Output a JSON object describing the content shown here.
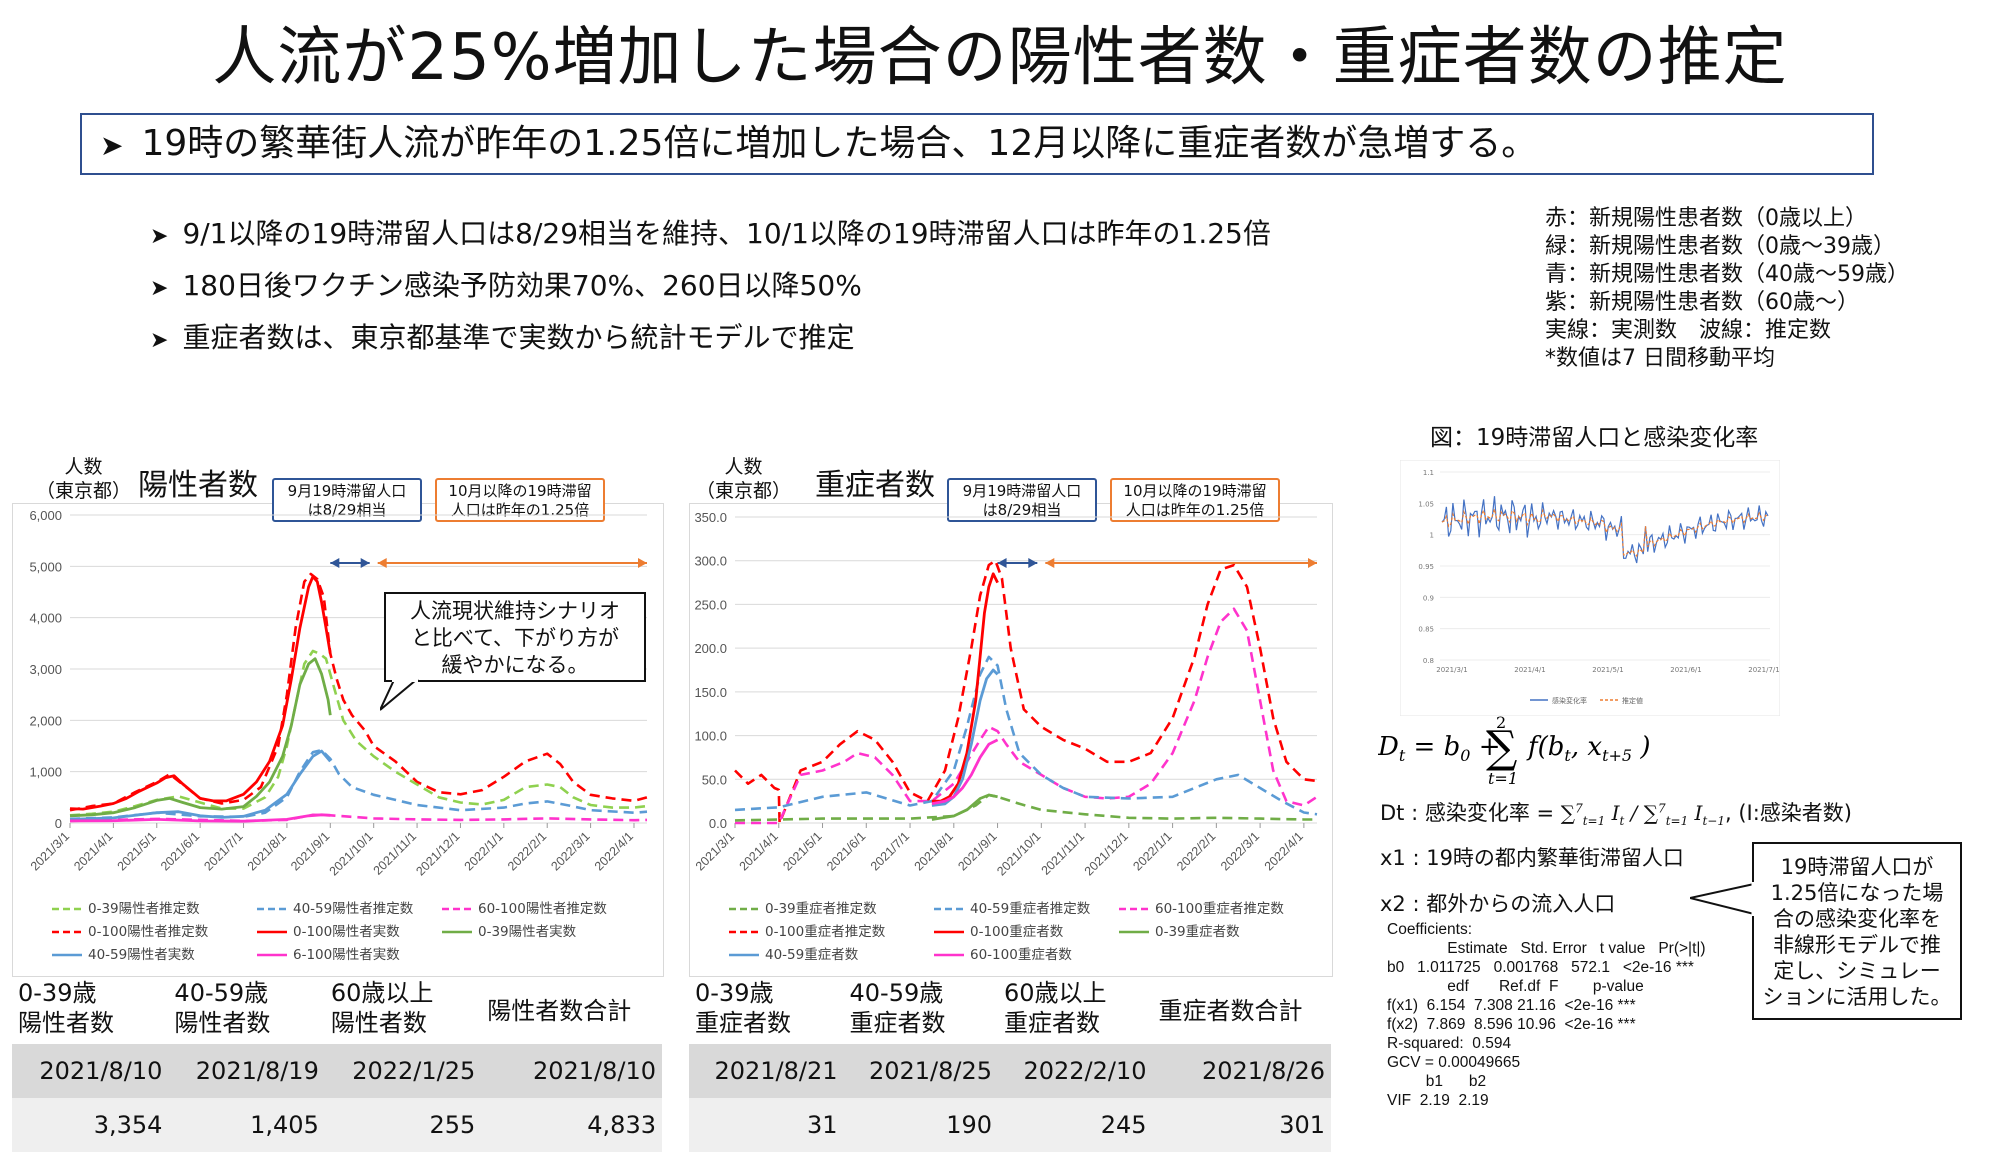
{
  "title": "人流が25%増加した場合の陽性者数・重症者数の推定",
  "summary": "19時の繁華街人流が昨年の1.25倍に増加した場合、12月以降に重症者数が急増する。",
  "bullets": [
    "9/1以降の19時滞留人口は8/29相当を維持、10/1以降の19時滞留人口は昨年の1.25倍",
    "180日後ワクチン感染予防効果70%、260日以降50%",
    "重症者数は、東京都基準で実数から統計モデルで推定"
  ],
  "legend_note": [
    "赤：新規陽性患者数（0歳以上）",
    "緑：新規陽性患者数（0歳〜39歳）",
    "青：新規陽性患者数（40歳〜59歳）",
    "紫：新規陽性患者数（60歳〜）",
    "実線：実測数　波線：推定数",
    "*数値は7 日間移動平均"
  ],
  "colors": {
    "red": "#ff0000",
    "green": "#8fd14f",
    "green_dark": "#70ad47",
    "blue": "#5b9bd5",
    "magenta": "#ff33cc",
    "callout_blue": "#2f5597",
    "callout_orange": "#ed7d31"
  },
  "left_chart": {
    "ylabel": "人数\n（東京都）",
    "title": "陽性者数",
    "callout1": "9月19時滞留人口\nは8/29相当",
    "callout2": "10月以降の19時滞留\n人口は昨年の1.25倍",
    "note": "人流現状維持シナリオ\nと比べて、下がり方が\n緩やかになる。",
    "legend": [
      "0-39陽性者推定数",
      "40-59陽性者推定数",
      "60-100陽性者推定数",
      "0-100陽性者推定数",
      "0-100陽性者実数",
      "0-39陽性者実数",
      "40-59陽性者実数",
      "6-100陽性者実数"
    ]
  },
  "right_chart": {
    "ylabel": "人数\n（東京都）",
    "title": "重症者数",
    "callout1": "9月19時滞留人口\nは8/29相当",
    "callout2": "10月以降の19時滞留\n人口は昨年の1.25倍",
    "legend": [
      "0-39重症者推定数",
      "40-59重症者推定数",
      "60-100重症者推定数",
      "0-100重症者推定数",
      "0-100重症者数",
      "0-39重症者数",
      "40-59重症者数",
      "60-100重症者数"
    ]
  },
  "chart_data": [
    {
      "type": "line",
      "title": "陽性者数",
      "ylabel": "人数（東京都）",
      "ylim": [
        0,
        6000
      ],
      "yticks": [
        "0",
        "1,000",
        "2,000",
        "3,000",
        "4,000",
        "5,000",
        "6,000"
      ],
      "xticks": [
        "2021/3/1",
        "2021/4/1",
        "2021/5/1",
        "2021/6/1",
        "2021/7/1",
        "2021/8/1",
        "2021/9/1",
        "2021/10/1",
        "2021/11/1",
        "2021/12/1",
        "2022/1/1",
        "2022/2/1",
        "2022/3/1",
        "2022/4/1"
      ],
      "x_months": [
        0,
        1,
        2,
        3,
        4,
        5,
        6,
        7,
        8,
        9,
        10,
        11,
        12,
        13
      ],
      "legend_position": "bottom",
      "series": [
        {
          "name": "0-100陽性者推定数",
          "color": "#ff0000",
          "dash": true,
          "x": [
            0,
            0.5,
            1,
            1.5,
            2,
            2.3,
            2.6,
            3,
            3.5,
            4,
            4.4,
            4.8,
            5,
            5.2,
            5.4,
            5.55,
            5.7,
            5.85,
            6,
            6.15,
            6.3,
            6.5,
            6.8,
            7,
            7.5,
            8,
            8.5,
            9,
            9.5,
            10,
            10.5,
            11,
            11.3,
            11.6,
            12,
            12.5,
            13,
            13.3
          ],
          "y": [
            250,
            330,
            380,
            600,
            800,
            950,
            750,
            480,
            380,
            450,
            700,
            1500,
            2500,
            3800,
            4700,
            4850,
            4750,
            4400,
            3300,
            2800,
            2400,
            2100,
            1800,
            1500,
            1200,
            800,
            600,
            560,
            640,
            900,
            1200,
            1350,
            1150,
            800,
            550,
            480,
            430,
            500
          ]
        },
        {
          "name": "0-39陽性者推定数",
          "color": "#8fd14f",
          "dash": true,
          "x": [
            0,
            0.5,
            1,
            1.5,
            2,
            2.5,
            3,
            3.5,
            4,
            4.5,
            4.8,
            5,
            5.2,
            5.4,
            5.6,
            5.75,
            5.9,
            6.1,
            6.3,
            6.6,
            7,
            7.5,
            8,
            8.5,
            9,
            9.5,
            10,
            10.5,
            11,
            11.3,
            11.6,
            12,
            12.5,
            13,
            13.3
          ],
          "y": [
            150,
            180,
            220,
            330,
            450,
            520,
            400,
            280,
            280,
            500,
            900,
            1500,
            2300,
            3100,
            3350,
            3300,
            3200,
            2600,
            2000,
            1600,
            1300,
            1000,
            750,
            500,
            400,
            360,
            450,
            700,
            750,
            700,
            500,
            350,
            300,
            300,
            330
          ]
        },
        {
          "name": "40-59陽性者推定数",
          "color": "#5b9bd5",
          "dash": true,
          "x": [
            0,
            1,
            2,
            3,
            4,
            4.5,
            5,
            5.3,
            5.6,
            5.8,
            6,
            6.2,
            6.5,
            7,
            7.5,
            8,
            9,
            10,
            10.5,
            11,
            11.5,
            12,
            13,
            13.3
          ],
          "y": [
            80,
            110,
            200,
            130,
            120,
            200,
            500,
            1000,
            1380,
            1420,
            1250,
            950,
            700,
            550,
            450,
            350,
            250,
            300,
            380,
            420,
            340,
            250,
            200,
            220
          ]
        },
        {
          "name": "60-100陽性者推定数",
          "color": "#ff33cc",
          "dash": true,
          "x": [
            0,
            2,
            4,
            5,
            5.6,
            6,
            7,
            8,
            9,
            10,
            11,
            12,
            13,
            13.3
          ],
          "y": [
            40,
            80,
            40,
            60,
            160,
            150,
            90,
            70,
            60,
            70,
            90,
            70,
            55,
            60
          ]
        },
        {
          "name": "0-100陽性者実数",
          "color": "#ff0000",
          "dash": false,
          "x": [
            0,
            0.3,
            0.7,
            1,
            1.3,
            1.6,
            2,
            2.2,
            2.4,
            2.6,
            2.8,
            3,
            3.3,
            3.6,
            4,
            4.3,
            4.6,
            4.9,
            5.1,
            5.3,
            5.5,
            5.6,
            5.7,
            5.8,
            5.9,
            6.0
          ],
          "y": [
            280,
            270,
            330,
            380,
            480,
            620,
            780,
            880,
            920,
            760,
            620,
            480,
            430,
            430,
            560,
            800,
            1200,
            1900,
            2800,
            3800,
            4600,
            4800,
            4700,
            4300,
            3800,
            3300
          ]
        },
        {
          "name": "0-39陽性者実数",
          "color": "#70ad47",
          "dash": false,
          "x": [
            0,
            0.5,
            1,
            1.5,
            2,
            2.3,
            2.6,
            3,
            3.5,
            4,
            4.3,
            4.6,
            4.9,
            5.1,
            5.3,
            5.5,
            5.65,
            5.8,
            5.95,
            6.0
          ],
          "y": [
            140,
            160,
            200,
            300,
            440,
            480,
            400,
            300,
            270,
            320,
            520,
            800,
            1300,
            1900,
            2700,
            3100,
            3200,
            2900,
            2400,
            2100
          ]
        },
        {
          "name": "40-59陽性者実数",
          "color": "#5b9bd5",
          "dash": false,
          "x": [
            0,
            1,
            2,
            2.5,
            3,
            3.5,
            4,
            4.5,
            5,
            5.3,
            5.6,
            5.8,
            6.0
          ],
          "y": [
            70,
            100,
            200,
            220,
            140,
            110,
            130,
            250,
            560,
            950,
            1300,
            1400,
            1200
          ]
        },
        {
          "name": "6-100陽性者実数",
          "color": "#ff33cc",
          "dash": false,
          "x": [
            0,
            1,
            2,
            3,
            4,
            5,
            5.5,
            5.8,
            6.0
          ],
          "y": [
            40,
            45,
            70,
            40,
            35,
            70,
            140,
            160,
            150
          ]
        }
      ]
    },
    {
      "type": "line",
      "title": "重症者数",
      "ylabel": "人数（東京都）",
      "ylim": [
        0,
        350
      ],
      "yticks": [
        "0.0",
        "50.0",
        "100.0",
        "150.0",
        "200.0",
        "250.0",
        "300.0",
        "350.0"
      ],
      "xticks": [
        "2021/3/1",
        "2021/4/1",
        "2021/5/1",
        "2021/6/1",
        "2021/7/1",
        "2021/8/1",
        "2021/9/1",
        "2021/10/1",
        "2021/11/1",
        "2021/12/1",
        "2022/1/1",
        "2022/2/1",
        "2022/3/1",
        "2022/4/1"
      ],
      "x_months": [
        0,
        1,
        2,
        3,
        4,
        5,
        6,
        7,
        8,
        9,
        10,
        11,
        12,
        13
      ],
      "legend_position": "bottom",
      "series": [
        {
          "name": "0-100重症者推定数",
          "color": "#ff0000",
          "dash": true,
          "x": [
            0,
            0.3,
            0.6,
            0.9,
            1.0,
            1.02,
            1.5,
            2,
            2.4,
            2.8,
            3.2,
            3.6,
            4,
            4.4,
            4.8,
            5.1,
            5.4,
            5.6,
            5.8,
            5.95,
            6.1,
            6.3,
            6.6,
            7,
            7.5,
            8,
            8.5,
            9,
            9.5,
            10,
            10.5,
            10.8,
            11.1,
            11.4,
            11.7,
            12,
            12.3,
            12.6,
            13,
            13.3
          ],
          "y": [
            60,
            45,
            55,
            40,
            38,
            0,
            60,
            70,
            90,
            105,
            95,
            70,
            35,
            25,
            60,
            120,
            200,
            260,
            295,
            300,
            280,
            200,
            130,
            110,
            95,
            85,
            70,
            70,
            80,
            120,
            190,
            250,
            290,
            295,
            270,
            200,
            120,
            70,
            50,
            48
          ]
        },
        {
          "name": "60-100重症者推定数",
          "color": "#ff33cc",
          "dash": true,
          "x": [
            0,
            1,
            1.5,
            2,
            2.5,
            2.8,
            3.2,
            3.6,
            4,
            4.5,
            5,
            5.3,
            5.6,
            5.8,
            6,
            6.2,
            6.5,
            7,
            7.5,
            8,
            8.5,
            9,
            9.5,
            10,
            10.5,
            10.8,
            11.1,
            11.4,
            11.7,
            12,
            12.3,
            12.6,
            13,
            13.3
          ],
          "y": [
            0,
            0,
            55,
            60,
            70,
            80,
            75,
            55,
            25,
            25,
            45,
            70,
            95,
            110,
            105,
            90,
            70,
            55,
            40,
            30,
            28,
            30,
            45,
            80,
            140,
            190,
            230,
            245,
            220,
            140,
            60,
            25,
            20,
            30
          ]
        },
        {
          "name": "40-59重症者推定数",
          "color": "#5b9bd5",
          "dash": true,
          "x": [
            0,
            1,
            2,
            3,
            4,
            4.5,
            5,
            5.3,
            5.6,
            5.8,
            6,
            6.2,
            6.5,
            7,
            7.5,
            8,
            9,
            10,
            10.5,
            11,
            11.5,
            12,
            12.5,
            13,
            13.3
          ],
          "y": [
            15,
            18,
            30,
            35,
            20,
            25,
            60,
            110,
            170,
            190,
            180,
            130,
            80,
            55,
            40,
            30,
            28,
            30,
            40,
            50,
            55,
            40,
            25,
            12,
            10
          ]
        },
        {
          "name": "0-39重症者推定数",
          "color": "#70ad47",
          "dash": true,
          "x": [
            0,
            2,
            4,
            5,
            5.5,
            5.8,
            6,
            6.5,
            7,
            8,
            9,
            10,
            11,
            12,
            13,
            13.3
          ],
          "y": [
            3,
            5,
            5,
            8,
            20,
            32,
            30,
            22,
            15,
            10,
            6,
            5,
            6,
            5,
            4,
            4
          ]
        },
        {
          "name": "0-100重症者数",
          "color": "#ff0000",
          "dash": false,
          "x": [
            4.5,
            4.7,
            4.9,
            5.1,
            5.3,
            5.5,
            5.6,
            5.7,
            5.8,
            5.9,
            6.0
          ],
          "y": [
            25,
            25,
            30,
            45,
            80,
            140,
            190,
            240,
            270,
            285,
            275
          ]
        },
        {
          "name": "40-59重症者数",
          "color": "#5b9bd5",
          "dash": false,
          "x": [
            4.5,
            4.8,
            5,
            5.2,
            5.4,
            5.6,
            5.75,
            5.9,
            6.0
          ],
          "y": [
            20,
            22,
            30,
            50,
            90,
            140,
            165,
            175,
            170
          ]
        },
        {
          "name": "60-100重症者数",
          "color": "#ff33cc",
          "dash": false,
          "x": [
            4.5,
            4.8,
            5,
            5.2,
            5.4,
            5.6,
            5.8,
            6.0
          ],
          "y": [
            22,
            25,
            30,
            40,
            55,
            75,
            90,
            95
          ]
        },
        {
          "name": "0-39重症者数",
          "color": "#70ad47",
          "dash": false,
          "x": [
            4.5,
            5,
            5.3,
            5.6,
            5.8,
            6.0
          ],
          "y": [
            4,
            8,
            15,
            28,
            32,
            30
          ]
        }
      ]
    },
    {
      "type": "line",
      "title": "図：19時滞留人口と感染変化率",
      "ylim": [
        0.8,
        1.1
      ],
      "yticks": [
        "0.8",
        "0.85",
        "0.9",
        "0.95",
        "1",
        "1.05",
        "1.1"
      ],
      "xticks": [
        "2021/3/1",
        "2021/4/1",
        "2021/5/1",
        "2021/6/1",
        "2021/7/1"
      ],
      "legend": [
        "感染変化率",
        "推定値"
      ]
    }
  ],
  "left_table": {
    "headers": [
      "0-39歳\n陽性者数",
      "40-59歳\n陽性者数",
      "60歳以上\n陽性者数",
      "陽性者数合計"
    ],
    "dates": [
      "2021/8/10",
      "2021/8/19",
      "2022/1/25",
      "2021/8/10"
    ],
    "values": [
      "3,354",
      "1,405",
      "255",
      "4,833"
    ]
  },
  "right_table": {
    "headers": [
      "0-39歳\n重症者数",
      "40-59歳\n重症者数",
      "60歳以上\n重症者数",
      "重症者数合計"
    ],
    "dates": [
      "2021/8/21",
      "2021/8/25",
      "2022/2/10",
      "2021/8/26"
    ],
    "values": [
      "31",
      "190",
      "245",
      "301"
    ]
  },
  "model": {
    "fig_title": "図：19時滞留人口と感染変化率",
    "dt_def": "Dt : 感染変化率 = ",
    "x1": "x1 : 19時の都内繁華街滞留人口",
    "x2": "x2 : 都外からの流入人口",
    "coefficients": "Coefficients:\n              Estimate   Std. Error   t value   Pr(>|t|)\nb0   1.011725   0.001768   572.1   <2e-16 ***\n              edf       Ref.df  F        p-value\nf(x1)  6.154  7.308 21.16  <2e-16 ***\nf(x2)  7.869  8.596 10.96  <2e-16 ***\nR-squared:  0.594\nGCV = 0.00049665\n         b1      b2\nVIF  2.19  2.19",
    "note": "19時滞留人口が\n1.25倍になった場\n合の感染変化率を\n非線形モデルで推\n定し、シミュレー\nションに活用した。"
  }
}
